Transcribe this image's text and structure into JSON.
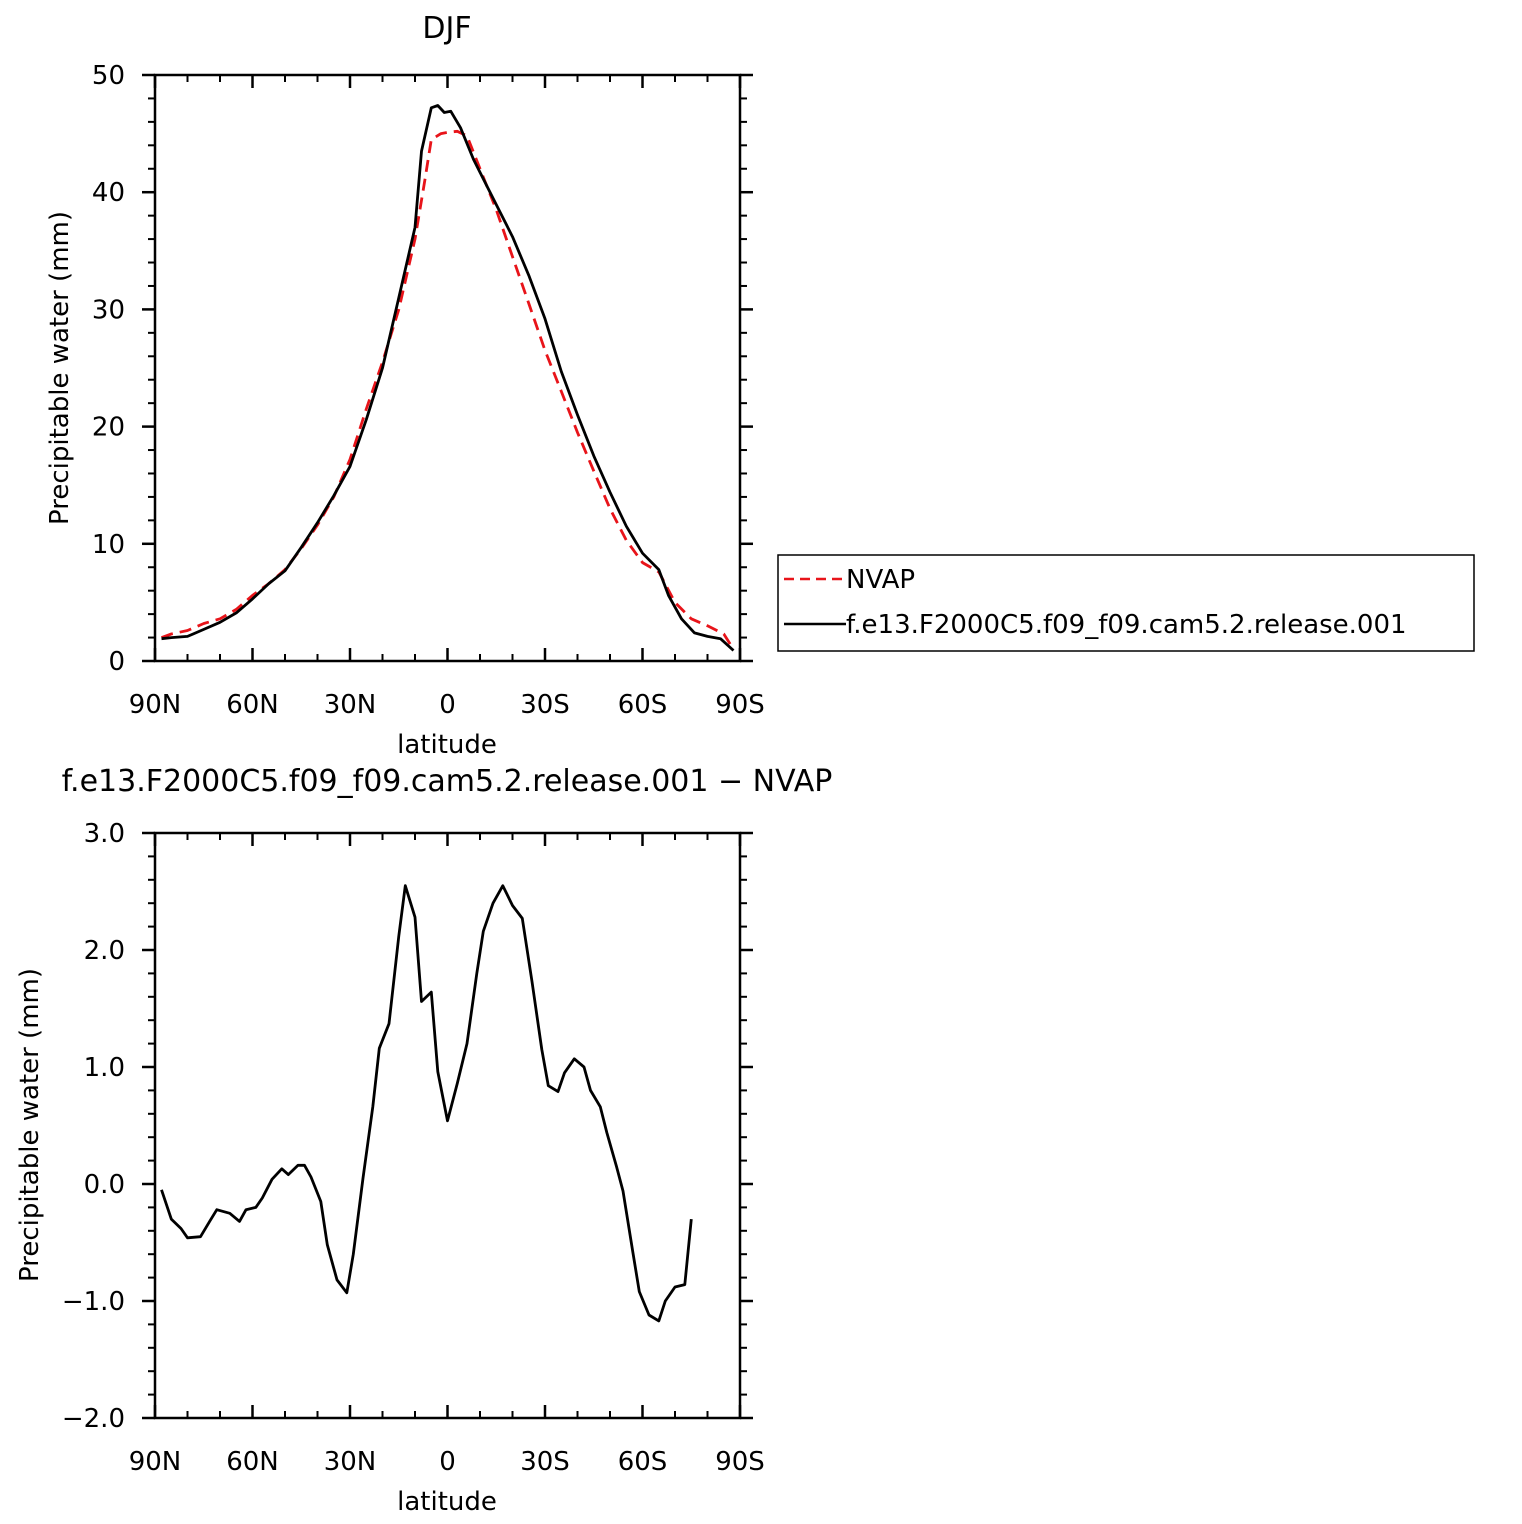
{
  "colors": {
    "model": "#000000",
    "nvap": "#e8141a",
    "axis": "#000000"
  },
  "chart_data": [
    {
      "type": "line",
      "title": "DJF",
      "xlabel": "latitude",
      "ylabel": "Precipitable water (mm)",
      "xlim": [
        90,
        -90
      ],
      "ylim": [
        0,
        50
      ],
      "xticks": [
        {
          "v": 90,
          "label": "90N"
        },
        {
          "v": 60,
          "label": "60N"
        },
        {
          "v": 30,
          "label": "30N"
        },
        {
          "v": 0,
          "label": "0"
        },
        {
          "v": -30,
          "label": "30S"
        },
        {
          "v": -60,
          "label": "60S"
        },
        {
          "v": -90,
          "label": "90S"
        }
      ],
      "yticks": [
        {
          "v": 0,
          "label": "0"
        },
        {
          "v": 10,
          "label": "10"
        },
        {
          "v": 20,
          "label": "20"
        },
        {
          "v": 30,
          "label": "30"
        },
        {
          "v": 40,
          "label": "40"
        },
        {
          "v": 50,
          "label": "50"
        }
      ],
      "legend": {
        "position": "right",
        "entries": [
          {
            "label": "NVAP",
            "style": "dashed",
            "color": "#e8141a"
          },
          {
            "label": "f.e13.F2000C5.f09_f09.cam5.2.release.001",
            "style": "solid",
            "color": "#000000"
          }
        ]
      },
      "series": [
        {
          "name": "NVAP",
          "style": "dashed",
          "color": "#e8141a",
          "points": [
            [
              88,
              2.0
            ],
            [
              85,
              2.3
            ],
            [
              80,
              2.6
            ],
            [
              75,
              3.2
            ],
            [
              70,
              3.6
            ],
            [
              65,
              4.4
            ],
            [
              60,
              5.6
            ],
            [
              55,
              6.6
            ],
            [
              50,
              7.8
            ],
            [
              45,
              9.6
            ],
            [
              40,
              11.6
            ],
            [
              35,
              14.0
            ],
            [
              30,
              17.2
            ],
            [
              25,
              21.5
            ],
            [
              20,
              25.5
            ],
            [
              15,
              30.0
            ],
            [
              10,
              36.0
            ],
            [
              7,
              41.0
            ],
            [
              5,
              44.5
            ],
            [
              2,
              45.0
            ],
            [
              0,
              45.1
            ],
            [
              -3,
              45.2
            ],
            [
              -6,
              44.8
            ],
            [
              -10,
              42.0
            ],
            [
              -15,
              38.5
            ],
            [
              -20,
              34.5
            ],
            [
              -25,
              30.5
            ],
            [
              -30,
              26.5
            ],
            [
              -35,
              23.0
            ],
            [
              -40,
              19.5
            ],
            [
              -45,
              16.2
            ],
            [
              -50,
              13.0
            ],
            [
              -55,
              10.3
            ],
            [
              -60,
              8.4
            ],
            [
              -65,
              7.6
            ],
            [
              -70,
              5.0
            ],
            [
              -75,
              3.6
            ],
            [
              -80,
              3.0
            ],
            [
              -85,
              2.3
            ],
            [
              -88,
              1.0
            ]
          ]
        },
        {
          "name": "f.e13.F2000C5.f09_f09.cam5.2.release.001",
          "style": "solid",
          "color": "#000000",
          "points": [
            [
              88,
              1.9
            ],
            [
              85,
              2.0
            ],
            [
              80,
              2.1
            ],
            [
              75,
              2.7
            ],
            [
              70,
              3.3
            ],
            [
              65,
              4.1
            ],
            [
              60,
              5.3
            ],
            [
              55,
              6.6
            ],
            [
              50,
              7.7
            ],
            [
              45,
              9.7
            ],
            [
              40,
              11.8
            ],
            [
              35,
              14.1
            ],
            [
              30,
              16.6
            ],
            [
              25,
              20.6
            ],
            [
              20,
              25.0
            ],
            [
              15,
              31.0
            ],
            [
              10,
              37.0
            ],
            [
              8,
              43.5
            ],
            [
              5,
              47.2
            ],
            [
              3,
              47.4
            ],
            [
              1,
              46.8
            ],
            [
              -1,
              46.9
            ],
            [
              -4,
              45.5
            ],
            [
              -8,
              42.8
            ],
            [
              -12,
              40.6
            ],
            [
              -16,
              38.4
            ],
            [
              -20,
              36.2
            ],
            [
              -25,
              32.9
            ],
            [
              -30,
              29.2
            ],
            [
              -35,
              24.7
            ],
            [
              -40,
              21.0
            ],
            [
              -45,
              17.5
            ],
            [
              -50,
              14.4
            ],
            [
              -55,
              11.5
            ],
            [
              -60,
              9.2
            ],
            [
              -65,
              7.8
            ],
            [
              -68,
              5.6
            ],
            [
              -72,
              3.6
            ],
            [
              -76,
              2.4
            ],
            [
              -80,
              2.1
            ],
            [
              -84,
              1.9
            ],
            [
              -88,
              0.9
            ]
          ]
        }
      ]
    },
    {
      "type": "line",
      "title": "f.e13.F2000C5.f09_f09.cam5.2.release.001  −  NVAP",
      "xlabel": "latitude",
      "ylabel": "Precipitable water (mm)",
      "xlim": [
        90,
        -90
      ],
      "ylim": [
        -2.0,
        3.0
      ],
      "xticks": [
        {
          "v": 90,
          "label": "90N"
        },
        {
          "v": 60,
          "label": "60N"
        },
        {
          "v": 30,
          "label": "30N"
        },
        {
          "v": 0,
          "label": "0"
        },
        {
          "v": -30,
          "label": "30S"
        },
        {
          "v": -60,
          "label": "60S"
        },
        {
          "v": -90,
          "label": "90S"
        }
      ],
      "yticks": [
        {
          "v": -2.0,
          "label": "−2.0"
        },
        {
          "v": -1.0,
          "label": "−1.0"
        },
        {
          "v": 0.0,
          "label": "0.0"
        },
        {
          "v": 1.0,
          "label": "1.0"
        },
        {
          "v": 2.0,
          "label": "2.0"
        },
        {
          "v": 3.0,
          "label": "3.0"
        }
      ],
      "series": [
        {
          "style": "solid",
          "color": "#000000",
          "points": [
            [
              88,
              -0.05
            ],
            [
              85,
              -0.3
            ],
            [
              82,
              -0.38
            ],
            [
              80,
              -0.46
            ],
            [
              76,
              -0.45
            ],
            [
              73,
              -0.31
            ],
            [
              71,
              -0.22
            ],
            [
              67,
              -0.25
            ],
            [
              64,
              -0.32
            ],
            [
              62,
              -0.22
            ],
            [
              59,
              -0.2
            ],
            [
              57,
              -0.12
            ],
            [
              54,
              0.04
            ],
            [
              51,
              0.13
            ],
            [
              49,
              0.08
            ],
            [
              46,
              0.16
            ],
            [
              44,
              0.16
            ],
            [
              42,
              0.06
            ],
            [
              39,
              -0.15
            ],
            [
              37,
              -0.52
            ],
            [
              34,
              -0.82
            ],
            [
              31,
              -0.93
            ],
            [
              29,
              -0.6
            ],
            [
              26,
              0.05
            ],
            [
              23,
              0.66
            ],
            [
              21,
              1.16
            ],
            [
              18,
              1.37
            ],
            [
              15,
              2.12
            ],
            [
              13,
              2.55
            ],
            [
              10,
              2.28
            ],
            [
              8,
              1.56
            ],
            [
              5,
              1.64
            ],
            [
              3,
              0.96
            ],
            [
              0,
              0.54
            ],
            [
              -3,
              0.86
            ],
            [
              -6,
              1.2
            ],
            [
              -9,
              1.8
            ],
            [
              -11,
              2.16
            ],
            [
              -14,
              2.4
            ],
            [
              -17,
              2.55
            ],
            [
              -20,
              2.38
            ],
            [
              -23,
              2.27
            ],
            [
              -26,
              1.73
            ],
            [
              -29,
              1.15
            ],
            [
              -31,
              0.84
            ],
            [
              -34,
              0.79
            ],
            [
              -36,
              0.95
            ],
            [
              -39,
              1.07
            ],
            [
              -42,
              1.0
            ],
            [
              -44,
              0.8
            ],
            [
              -47,
              0.66
            ],
            [
              -49,
              0.44
            ],
            [
              -52,
              0.15
            ],
            [
              -54,
              -0.06
            ],
            [
              -57,
              -0.58
            ],
            [
              -59,
              -0.92
            ],
            [
              -62,
              -1.12
            ],
            [
              -65,
              -1.17
            ],
            [
              -67,
              -1.0
            ],
            [
              -70,
              -0.88
            ],
            [
              -73,
              -0.86
            ],
            [
              -75,
              -0.3
            ]
          ]
        }
      ]
    }
  ]
}
